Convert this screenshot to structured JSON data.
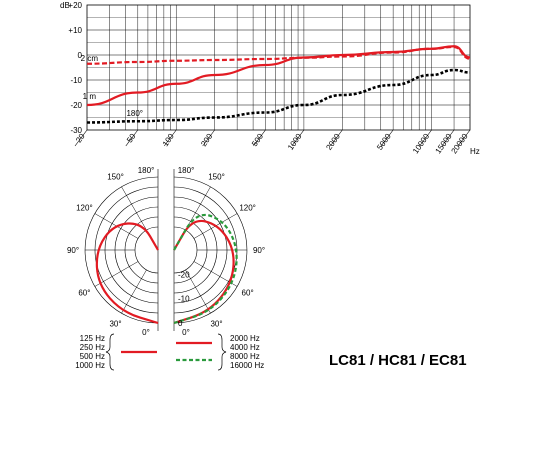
{
  "chart_data": [
    {
      "type": "line",
      "axes": {
        "y_unit_label": "dB",
        "y_ticks": [
          "+20",
          "+10",
          "0",
          "-10",
          "-20",
          "-30"
        ],
        "x_unit_label": "Hz",
        "x_ticks": [
          "20",
          "50",
          "100",
          "200",
          "500",
          "1000",
          "2000",
          "5000",
          "10000",
          "15000",
          "20000"
        ],
        "x_scale": "log",
        "x_range": [
          20,
          20000
        ],
        "y_range": [
          -30,
          20
        ],
        "grid": true
      },
      "series": [
        {
          "name": "2 cm",
          "color": "#e21b23",
          "style": "dashed",
          "points": [
            [
              20,
              -3.5
            ],
            [
              50,
              -2.8
            ],
            [
              100,
              -2.3
            ],
            [
              200,
              -2
            ],
            [
              500,
              -1.6
            ],
            [
              1000,
              -1.1
            ],
            [
              2000,
              -0.6
            ],
            [
              5000,
              1
            ],
            [
              10000,
              2.5
            ],
            [
              15000,
              3.2
            ],
            [
              20000,
              -1.5
            ]
          ]
        },
        {
          "name": "1 m",
          "color": "#e21b23",
          "style": "solid",
          "points": [
            [
              20,
              -20
            ],
            [
              50,
              -15
            ],
            [
              100,
              -11.5
            ],
            [
              200,
              -8
            ],
            [
              500,
              -4
            ],
            [
              1000,
              -1
            ],
            [
              2000,
              0
            ],
            [
              5000,
              1.2
            ],
            [
              10000,
              2.5
            ],
            [
              15000,
              3.5
            ],
            [
              20000,
              -1
            ]
          ]
        },
        {
          "name": "180°",
          "color": "#000000",
          "style": "dashed",
          "points": [
            [
              20,
              -27
            ],
            [
              50,
              -26.5
            ],
            [
              100,
              -26
            ],
            [
              200,
              -25
            ],
            [
              500,
              -23
            ],
            [
              1000,
              -20
            ],
            [
              2000,
              -16
            ],
            [
              5000,
              -12
            ],
            [
              10000,
              -8
            ],
            [
              15000,
              -6
            ],
            [
              20000,
              -7
            ]
          ]
        }
      ]
    },
    {
      "type": "polar",
      "angle_labels": [
        "180°",
        "150°",
        "120°",
        "90°",
        "60°",
        "30°",
        "0°"
      ],
      "ring_labels": [
        "-20",
        "-10",
        "0"
      ],
      "radial_range_db": [
        -30,
        0
      ],
      "series": [
        {
          "name": "125 Hz / 250 Hz / 500 Hz / 1000 Hz",
          "side": "left",
          "color": "#e21b23",
          "style": "solid",
          "points": [
            [
              0,
              0
            ],
            [
              30,
              -0.5
            ],
            [
              60,
              -1.5
            ],
            [
              90,
              -4.5
            ],
            [
              120,
              -9
            ],
            [
              150,
              -17
            ],
            [
              160,
              -30
            ]
          ]
        },
        {
          "name": "2000 Hz / 4000 Hz",
          "side": "right",
          "color": "#e21b23",
          "style": "solid",
          "points": [
            [
              0,
              0
            ],
            [
              30,
              -0.8
            ],
            [
              60,
              -2.5
            ],
            [
              90,
              -5
            ],
            [
              120,
              -9
            ],
            [
              150,
              -15
            ],
            [
              165,
              -30
            ]
          ]
        },
        {
          "name": "8000 Hz / 16000 Hz",
          "side": "right",
          "color": "#2a9a3c",
          "style": "dashed",
          "points": [
            [
              0,
              0
            ],
            [
              30,
              -0.6
            ],
            [
              60,
              -1.8
            ],
            [
              90,
              -3.5
            ],
            [
              120,
              -6
            ],
            [
              150,
              -11.5
            ],
            [
              180,
              -30
            ]
          ]
        }
      ],
      "legend": {
        "left_group": [
          "125 Hz",
          "250 Hz",
          "500 Hz",
          "1000 Hz"
        ],
        "right_solid": [
          "2000 Hz",
          "4000 Hz"
        ],
        "right_dashed": [
          "8000 Hz",
          "16000 Hz"
        ]
      }
    }
  ],
  "model_title": "LC81 / HC81 / EC81"
}
